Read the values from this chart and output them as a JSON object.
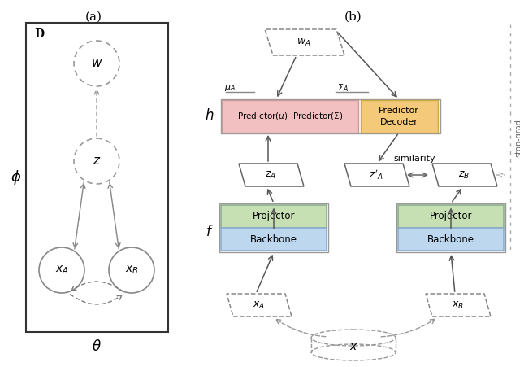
{
  "title_a": "(a)",
  "title_b": "(b)",
  "bg_color": "#ffffff",
  "node_edge_color": "#999999",
  "predictor_mu_sigma_fill": "#f2c0c0",
  "predictor_decoder_fill": "#f5c97a",
  "projector_fill": "#c6e0b4",
  "backbone_fill": "#bdd7ee",
  "similarity_text": "similarity",
  "stop_grad_text": "stop-grad"
}
